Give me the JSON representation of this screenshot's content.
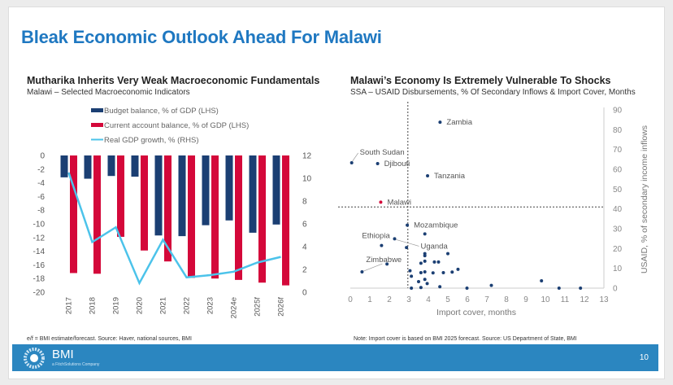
{
  "title": "Bleak Economic Outlook Ahead For Malawi",
  "footer": {
    "source_left": "e/f = BMI estimate/forecast. Source: Haver, national sources, BMI",
    "source_right": "Note: Import cover is based on BMI 2025 forecast. Source: US Department of State, BMI",
    "brand": "BMI",
    "brand_sub": "a FitchSolutions Company",
    "page_number": "10",
    "bar_color": "#2b86c0"
  },
  "chart_data": [
    {
      "type": "bar",
      "title": "Mutharika Inherits Very Weak Macroeconomic Fundamentals",
      "subtitle": "Malawi – Selected Macroeconomic Indicators",
      "categories": [
        "2017",
        "2018",
        "2019",
        "2020",
        "2021",
        "2022",
        "2023",
        "2024e",
        "2025f",
        "2026f"
      ],
      "series": [
        {
          "name": "Budget balance, % of GDP (LHS)",
          "kind": "bar",
          "axis": "left",
          "color": "#1b3f73",
          "values": [
            -3.2,
            -3.4,
            -3.0,
            -3.1,
            -11.7,
            -11.8,
            -10.2,
            -9.5,
            -11.3,
            -10.1
          ]
        },
        {
          "name": "Current account balance, % of GDP (LHS)",
          "kind": "bar",
          "axis": "left",
          "color": "#d4083a",
          "values": [
            -17.2,
            -17.3,
            -11.9,
            -13.9,
            -15.5,
            -17.9,
            -18.0,
            -18.2,
            -18.6,
            -19.0
          ]
        },
        {
          "name": "Real GDP growth, % (RHS)",
          "kind": "line",
          "axis": "right",
          "color": "#4cc3ea",
          "values": [
            10.5,
            4.4,
            5.7,
            0.8,
            4.6,
            1.3,
            1.5,
            1.8,
            2.6,
            3.1
          ]
        }
      ],
      "ylim_left": [
        -20,
        0
      ],
      "yticks_left": [
        "0",
        "-2",
        "-4",
        "-6",
        "-8",
        "-10",
        "-12",
        "-14",
        "-16",
        "-18",
        "-20"
      ],
      "ylim_right": [
        0,
        12
      ],
      "yticks_right": [
        "12",
        "10",
        "8",
        "6",
        "4",
        "2",
        "0"
      ],
      "legend": "top",
      "grid": false
    },
    {
      "type": "scatter",
      "title": "Malawi’s Economy Is Extremely Vulnerable To Shocks",
      "subtitle": "SSA – USAID Disbursements, % Of Secondary Inflows & Import Cover, Months",
      "xlabel": "Import cover, months",
      "ylabel": "USAID, % of secondary income inflows",
      "xlim": [
        0,
        13
      ],
      "ylim": [
        0,
        90
      ],
      "xticks": [
        "0",
        "1",
        "2",
        "3",
        "4",
        "5",
        "6",
        "7",
        "8",
        "9",
        "10",
        "11",
        "12",
        "13"
      ],
      "yticks": [
        "90",
        "80",
        "70",
        "60",
        "50",
        "40",
        "30",
        "20",
        "10",
        "0"
      ],
      "reference_lines": {
        "x": 2.95,
        "y": 41
      },
      "point_color": "#1b3f73",
      "highlight_color": "#d4083a",
      "points": [
        {
          "label": "Zambia",
          "x": 4.6,
          "y": 83.8
        },
        {
          "label": "South Sudan",
          "x": 0.07,
          "y": 63.3
        },
        {
          "label": "Djibouti",
          "x": 1.4,
          "y": 62.9
        },
        {
          "label": "Tanzania",
          "x": 3.96,
          "y": 56.7
        },
        {
          "label": "Malawi",
          "x": 1.56,
          "y": 43.4,
          "highlight": true
        },
        {
          "label": "Mozambique",
          "x": 2.92,
          "y": 31.8
        },
        {
          "label": "Uganda",
          "x": 2.27,
          "y": 24.9
        },
        {
          "label": "Ethiopia",
          "x": 1.6,
          "y": 21.5
        },
        {
          "label": "Zimbabwe",
          "x": 0.6,
          "y": 8.2
        },
        {
          "x": 3.82,
          "y": 27.4
        },
        {
          "x": 2.88,
          "y": 20.5
        },
        {
          "x": 3.82,
          "y": 17.4
        },
        {
          "x": 3.82,
          "y": 16.4
        },
        {
          "x": 5.0,
          "y": 17.4
        },
        {
          "x": 3.82,
          "y": 13.6
        },
        {
          "x": 3.62,
          "y": 12.6
        },
        {
          "x": 4.31,
          "y": 13.2
        },
        {
          "x": 4.52,
          "y": 13.2
        },
        {
          "x": 1.88,
          "y": 12.2
        },
        {
          "x": 3.06,
          "y": 8.8
        },
        {
          "x": 3.13,
          "y": 6.0
        },
        {
          "x": 3.62,
          "y": 7.8
        },
        {
          "x": 3.82,
          "y": 8.2
        },
        {
          "x": 4.24,
          "y": 7.7
        },
        {
          "x": 4.77,
          "y": 7.8
        },
        {
          "x": 5.22,
          "y": 8.1
        },
        {
          "x": 5.52,
          "y": 9.5
        },
        {
          "x": 3.5,
          "y": 3.3
        },
        {
          "x": 3.82,
          "y": 4.4
        },
        {
          "x": 3.94,
          "y": 2.3
        },
        {
          "x": 3.13,
          "y": 0
        },
        {
          "x": 3.62,
          "y": 0.3
        },
        {
          "x": 4.59,
          "y": 0.7
        },
        {
          "x": 5.98,
          "y": 0
        },
        {
          "x": 7.23,
          "y": 1.4
        },
        {
          "x": 9.8,
          "y": 3.7
        },
        {
          "x": 10.7,
          "y": 0
        },
        {
          "x": 11.8,
          "y": 0
        }
      ]
    }
  ]
}
